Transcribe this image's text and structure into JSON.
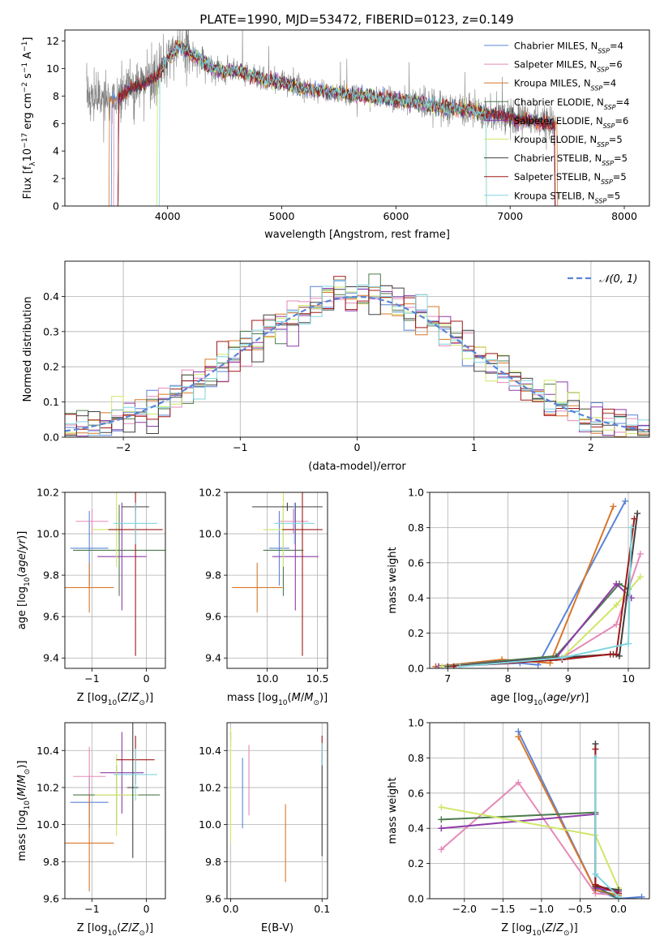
{
  "figure": {
    "title": "PLATE=1990, MJD=53472, FIBERID=0123, z=0.149"
  },
  "models": [
    {
      "key": "chabrier_miles",
      "label": "Chabrier MILES, N",
      "sub": "SSP",
      "suffix": "=4",
      "color": "#5b84d6"
    },
    {
      "key": "salpeter_miles",
      "label": "Salpeter MILES, N",
      "sub": "SSP",
      "suffix": "=6",
      "color": "#e58ab8"
    },
    {
      "key": "kroupa_miles",
      "label": "Kroupa MILES, N",
      "sub": "SSP",
      "suffix": "=4",
      "color": "#d8772a"
    },
    {
      "key": "chabrier_elodie",
      "label": "Chabrier ELODIE, N",
      "sub": "SSP",
      "suffix": "=4",
      "color": "#4d7a4d"
    },
    {
      "key": "salpeter_elodie",
      "label": "Salpeter ELODIE, N",
      "sub": "SSP",
      "suffix": "=6",
      "color": "#8e3aa8"
    },
    {
      "key": "kroupa_elodie",
      "label": "Kroupa ELODIE, N",
      "sub": "SSP",
      "suffix": "=5",
      "color": "#cfe66a"
    },
    {
      "key": "chabrier_stelib",
      "label": "Chabrier STELIB, N",
      "sub": "SSP",
      "suffix": "=5",
      "color": "#404040"
    },
    {
      "key": "salpeter_stelib",
      "label": "Salpeter STELIB, N",
      "sub": "SSP",
      "suffix": "=5",
      "color": "#a01818"
    },
    {
      "key": "kroupa_stelib",
      "label": "Kroupa STELIB, N",
      "sub": "SSP",
      "suffix": "=5",
      "color": "#7fd6e0"
    }
  ],
  "chart_data": [
    {
      "id": "spectrum",
      "type": "line",
      "xlabel": "wavelength [Angstrom, rest frame]",
      "ylabel_main": "Flux [f",
      "ylabel_sub": "λ",
      "ylabel_rest": "10",
      "ylabel_sup1": "−17",
      "ylabel_rest2": " erg cm",
      "ylabel_sup2": "−2",
      "ylabel_rest3": " s",
      "ylabel_sup3": "−1",
      "ylabel_rest4": " A",
      "ylabel_sup4": "−1",
      "ylabel_end": "]",
      "xlim": [
        3100,
        8220
      ],
      "ylim": [
        0,
        12.8
      ],
      "xticks": [
        4000,
        5000,
        6000,
        7000,
        8000
      ],
      "yticks": [
        0,
        2,
        4,
        6,
        8,
        10,
        12
      ],
      "grid": false,
      "legend": "right",
      "model_trace": {
        "x": [
          3290,
          3400,
          3500,
          3550,
          3600,
          3700,
          3800,
          3900,
          3950,
          4000,
          4050,
          4100,
          4200,
          4300,
          4400,
          4500,
          4600,
          4700,
          4800,
          4900,
          5000,
          5100,
          5200,
          5300,
          5400,
          5500,
          5600,
          5700,
          5800,
          5900,
          6000,
          6100,
          6200,
          6300,
          6400,
          6500,
          6600,
          6700,
          6800,
          6900,
          7000,
          7100,
          7200,
          7300,
          7400
        ],
        "y": [
          8.1,
          7.7,
          7.6,
          7.9,
          8.1,
          8.7,
          8.9,
          9.4,
          10.0,
          10.6,
          11.2,
          11.6,
          11.2,
          10.6,
          9.9,
          9.8,
          9.9,
          9.6,
          9.3,
          9.1,
          9.0,
          8.7,
          8.5,
          8.4,
          8.3,
          8.2,
          8.1,
          8.0,
          7.9,
          7.8,
          7.7,
          7.6,
          7.5,
          7.3,
          7.2,
          7.1,
          7.0,
          6.9,
          6.7,
          6.6,
          6.4,
          6.3,
          6.2,
          6.0,
          5.9
        ]
      },
      "data_trace_range": [
        3290,
        7400
      ]
    },
    {
      "id": "residuals",
      "type": "histogram",
      "xlabel": "(data-model)/error",
      "ylabel": "Normed distribution",
      "xlim": [
        -2.5,
        2.5
      ],
      "ylim": [
        0,
        0.5
      ],
      "xticks": [
        -2,
        -1,
        0,
        1,
        2
      ],
      "yticks": [
        0.0,
        0.1,
        0.2,
        0.3,
        0.4
      ],
      "grid": true,
      "legend": "top-right",
      "legend_label": "𝒩(0, 1)",
      "bin_width": 0.1
    },
    {
      "id": "age_vs_Z",
      "type": "errorbar",
      "xlabel": "Z [log10(Z/Z⊙)]",
      "ylabel": "age  [log10(age/yr)]",
      "xlim": [
        -1.5,
        0.35
      ],
      "ylim": [
        9.35,
        10.2
      ],
      "xticks": [
        -1,
        0
      ],
      "yticks": [
        9.4,
        9.6,
        9.8,
        10.0,
        10.2
      ],
      "grid": true,
      "points": [
        {
          "x": -1.05,
          "xerr": 0.35,
          "y": 9.93,
          "yerr": 0.18
        },
        {
          "x": -1.0,
          "xerr": 0.3,
          "y": 10.06,
          "yerr": 0.06
        },
        {
          "x": -1.05,
          "xerr": 0.45,
          "y": 9.74,
          "yerr": 0.12
        },
        {
          "x": -0.5,
          "xerr": 0.85,
          "y": 9.92,
          "yerr": 0.22
        },
        {
          "x": -0.45,
          "xerr": 0.45,
          "y": 9.89,
          "yerr": 0.26
        },
        {
          "x": -0.55,
          "xerr": 0.45,
          "y": 10.02,
          "yerr": 0.18
        },
        {
          "x": -0.2,
          "xerr": 0.25,
          "y": 10.13,
          "yerr": 0.02
        },
        {
          "x": -0.2,
          "xerr": 0.5,
          "y": 10.02,
          "yerr": 0.61
        },
        {
          "x": -0.2,
          "xerr": 0.4,
          "y": 10.05,
          "yerr": 0.1
        }
      ]
    },
    {
      "id": "age_vs_mass",
      "type": "errorbar",
      "xlabel": "mass [log10(M/M⊙)]",
      "ylabel": "",
      "xlim": [
        9.6,
        10.6
      ],
      "ylim": [
        9.35,
        10.2
      ],
      "xticks": [
        10.0,
        10.5
      ],
      "yticks": [
        9.4,
        9.6,
        9.8,
        10.0,
        10.2
      ],
      "grid": true,
      "points": [
        {
          "x": 10.12,
          "xerr": 0.1,
          "y": 9.93,
          "yerr": 0.18
        },
        {
          "x": 10.26,
          "xerr": 0.15,
          "y": 10.06,
          "yerr": 0.06
        },
        {
          "x": 9.9,
          "xerr": 0.25,
          "y": 9.74,
          "yerr": 0.12
        },
        {
          "x": 10.16,
          "xerr": 0.2,
          "y": 9.92,
          "yerr": 0.22
        },
        {
          "x": 10.28,
          "xerr": 0.23,
          "y": 9.89,
          "yerr": 0.26
        },
        {
          "x": 10.16,
          "xerr": 0.2,
          "y": 10.02,
          "yerr": 0.18
        },
        {
          "x": 10.2,
          "xerr": 0.35,
          "y": 10.13,
          "yerr": 0.02
        },
        {
          "x": 10.35,
          "xerr": 0.2,
          "y": 10.02,
          "yerr": 0.61
        },
        {
          "x": 10.27,
          "xerr": 0.2,
          "y": 10.05,
          "yerr": 0.1
        }
      ]
    },
    {
      "id": "mass_weight_vs_age",
      "type": "line",
      "xlabel": "age  [log10(age/yr)]",
      "ylabel": "mass weight",
      "xlim": [
        6.7,
        10.35
      ],
      "ylim": [
        0,
        1.0
      ],
      "xticks": [
        7,
        8,
        9,
        10
      ],
      "yticks": [
        0.0,
        0.2,
        0.4,
        0.6,
        0.8,
        1.0
      ],
      "grid": true,
      "series": [
        {
          "x": [
            6.8,
            8.2,
            8.5,
            9.95
          ],
          "y": [
            0.01,
            0.03,
            0.02,
            0.95
          ]
        },
        {
          "x": [
            6.8,
            8.0,
            8.9,
            9.8,
            10.2
          ],
          "y": [
            0.01,
            0.03,
            0.06,
            0.25,
            0.65
          ]
        },
        {
          "x": [
            6.8,
            7.9,
            8.7,
            9.75
          ],
          "y": [
            0.01,
            0.05,
            0.03,
            0.92
          ]
        },
        {
          "x": [
            6.85,
            8.8,
            9.85,
            10.0
          ],
          "y": [
            0.01,
            0.07,
            0.48,
            0.45
          ]
        },
        {
          "x": [
            6.85,
            8.8,
            9.8,
            10.05
          ],
          "y": [
            0.01,
            0.06,
            0.48,
            0.4
          ]
        },
        {
          "x": [
            6.9,
            8.9,
            9.8,
            10.2
          ],
          "y": [
            0.01,
            0.06,
            0.36,
            0.52
          ]
        },
        {
          "x": [
            7.0,
            8.8,
            9.75,
            9.85,
            10.15
          ],
          "y": [
            0.01,
            0.06,
            0.08,
            0.07,
            0.88
          ]
        },
        {
          "x": [
            7.1,
            8.9,
            9.7,
            9.8,
            10.1
          ],
          "y": [
            0.01,
            0.05,
            0.08,
            0.08,
            0.85
          ]
        },
        {
          "x": [
            7.2,
            8.9,
            10.0,
            10.05
          ],
          "y": [
            0.01,
            0.06,
            0.14,
            0.8
          ]
        }
      ]
    },
    {
      "id": "mass_vs_Z",
      "type": "errorbar",
      "xlabel": "Z [log10(Z/Z⊙)]",
      "ylabel": "mass [log10(M/M⊙)]",
      "xlim": [
        -1.5,
        0.35
      ],
      "ylim": [
        9.6,
        10.55
      ],
      "xticks": [
        -1,
        0
      ],
      "yticks": [
        9.6,
        9.8,
        10.0,
        10.2,
        10.4
      ],
      "grid": true,
      "points": [
        {
          "x": -1.05,
          "xerr": 0.35,
          "y": 10.12,
          "yerr": 0.14
        },
        {
          "x": -1.05,
          "xerr": 0.3,
          "y": 10.26,
          "yerr": 0.16
        },
        {
          "x": -1.05,
          "xerr": 0.45,
          "y": 9.9,
          "yerr": 0.26
        },
        {
          "x": -0.55,
          "xerr": 0.8,
          "y": 10.16,
          "yerr": 0.16
        },
        {
          "x": -0.45,
          "xerr": 0.4,
          "y": 10.28,
          "yerr": 0.22
        },
        {
          "x": -0.55,
          "xerr": 0.4,
          "y": 10.16,
          "yerr": 0.22
        },
        {
          "x": -0.25,
          "xerr": 0.1,
          "y": 10.2,
          "yerr": 0.38
        },
        {
          "x": -0.2,
          "xerr": 0.35,
          "y": 10.35,
          "yerr": 0.13
        },
        {
          "x": -0.2,
          "xerr": 0.4,
          "y": 10.27,
          "yerr": 0.14
        }
      ]
    },
    {
      "id": "mass_vs_ebv",
      "type": "errorbar",
      "xlabel": "E(B-V)",
      "ylabel": "",
      "xlim": [
        -0.004,
        0.106
      ],
      "ylim": [
        9.6,
        10.55
      ],
      "xticks": [
        0.0,
        0.1
      ],
      "yticks": [
        9.6,
        9.8,
        10.0,
        10.2,
        10.4
      ],
      "grid": true,
      "points": [
        {
          "x": 0.013,
          "xerr": 0,
          "y": 10.17,
          "yerr": 0.19
        },
        {
          "x": 0.02,
          "xerr": 0,
          "y": 10.24,
          "yerr": 0.19
        },
        {
          "x": 0.06,
          "xerr": 0,
          "y": 9.9,
          "yerr": 0.21
        },
        {
          "x": 0.0,
          "xerr": 0,
          "y": 10.46,
          "yerr": 0.04
        },
        {
          "x": 0.0,
          "xerr": 0,
          "y": 10.48,
          "yerr": 0.02
        },
        {
          "x": 0.0,
          "xerr": 0,
          "y": 10.21,
          "yerr": 0.31
        },
        {
          "x": 0.1,
          "xerr": 0,
          "y": 10.1,
          "yerr": 0.27
        },
        {
          "x": 0.1,
          "xerr": 0,
          "y": 10.42,
          "yerr": 0.06
        },
        {
          "x": 0.1,
          "xerr": 0,
          "y": 10.38,
          "yerr": 0.06
        }
      ]
    },
    {
      "id": "mass_weight_vs_Z",
      "type": "line",
      "xlabel": "Z [log10(Z/Z⊙)]",
      "ylabel": "mass weight",
      "xlim": [
        -2.45,
        0.4
      ],
      "ylim": [
        0,
        1.0
      ],
      "xticks": [
        -2.0,
        -1.5,
        -1.0,
        -0.5,
        0.0
      ],
      "yticks": [
        0.0,
        0.2,
        0.4,
        0.6,
        0.8,
        1.0
      ],
      "grid": true,
      "series": [
        {
          "x": [
            -1.3,
            -0.3,
            0.0,
            0.3
          ],
          "y": [
            0.95,
            0.05,
            0.0,
            0.01
          ]
        },
        {
          "x": [
            -2.3,
            -1.3,
            -0.3,
            0.0
          ],
          "y": [
            0.28,
            0.66,
            0.03,
            0.02
          ]
        },
        {
          "x": [
            -1.3,
            -0.3,
            0.0
          ],
          "y": [
            0.92,
            0.05,
            0.02
          ]
        },
        {
          "x": [
            -2.3,
            -0.3,
            -0.3,
            0.0
          ],
          "y": [
            0.45,
            0.49,
            0.07,
            0.0
          ]
        },
        {
          "x": [
            -2.3,
            -0.3,
            -0.3,
            0.0
          ],
          "y": [
            0.4,
            0.48,
            0.06,
            0.04
          ]
        },
        {
          "x": [
            -2.3,
            -0.3,
            0.0
          ],
          "y": [
            0.52,
            0.36,
            0.06
          ]
        },
        {
          "x": [
            -0.3,
            -0.3,
            0.0
          ],
          "y": [
            0.88,
            0.07,
            0.05
          ]
        },
        {
          "x": [
            -0.3,
            -0.3,
            0.0
          ],
          "y": [
            0.85,
            0.08,
            0.03
          ]
        },
        {
          "x": [
            -0.3,
            -0.3,
            -0.3,
            0.0
          ],
          "y": [
            0.8,
            0.14,
            0.14,
            0.01
          ]
        }
      ]
    }
  ]
}
